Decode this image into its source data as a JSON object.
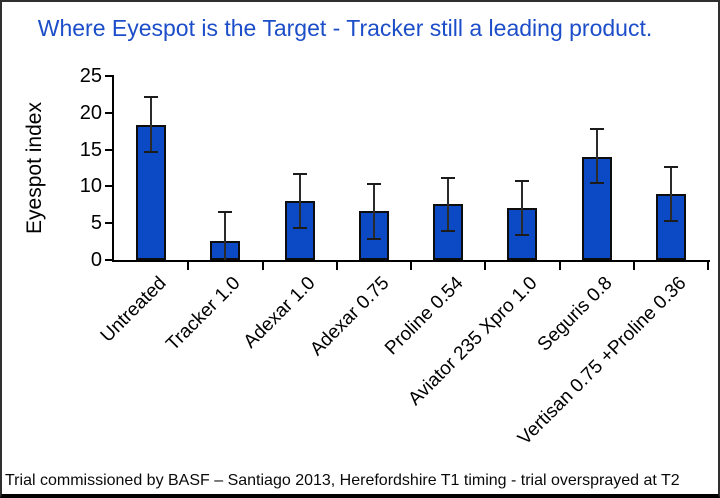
{
  "page": {
    "title": "Where Eyespot is the Target - Tracker still a leading product.",
    "footnote": "Trial commissioned by BASF – Santiago 2013, Herefordshire T1 timing - trial oversprayed at T2"
  },
  "chart_data": {
    "type": "bar",
    "title": "Where Eyespot is the Target - Tracker still a leading product.",
    "ylabel": "Eyespot index",
    "xlabel": "",
    "ylim": [
      0,
      25
    ],
    "yticks": [
      0,
      5,
      10,
      15,
      20,
      25
    ],
    "grid": false,
    "legend": "none",
    "categories": [
      "Untreated",
      "Tracker 1.0",
      "Adexar 1.0",
      "Adexar 0.75",
      "Proline 0.54",
      "Aviator 235 Xpro 1.0",
      "Seguris 0.8",
      "Vertisan 0.75 +Proline 0.36"
    ],
    "values": [
      18.3,
      2.6,
      8.0,
      6.7,
      7.6,
      7.0,
      14.0,
      8.9
    ],
    "error_upper": [
      22.1,
      6.5,
      11.7,
      10.3,
      11.2,
      10.8,
      17.8,
      12.7
    ],
    "error_lower": [
      14.7,
      0,
      4.4,
      2.9,
      3.9,
      3.4,
      10.4,
      5.3
    ],
    "bar_color": "#0c49c4",
    "bar_border_color": "#0d0d0d",
    "title_color": "#1d4ec9",
    "axis_color": "#000000"
  }
}
